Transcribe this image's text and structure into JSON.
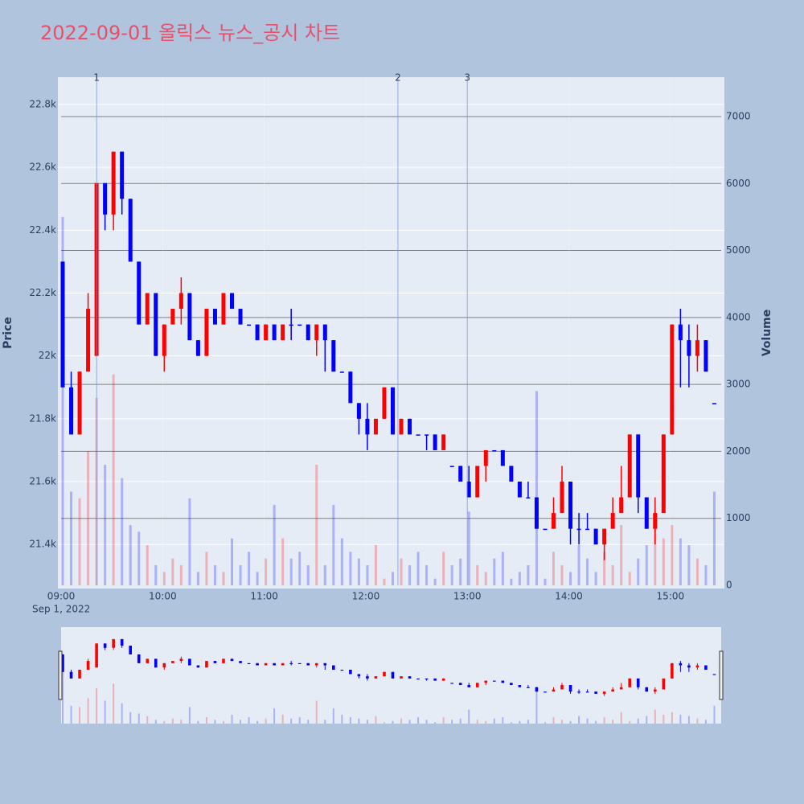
{
  "chart_data": {
    "type": "candlestick",
    "title": "2022-09-01 올릭스 뉴스_공시 차트",
    "y_label": "Price",
    "y2_label": "Volume",
    "x_sublabel": "Sep 1, 2022",
    "increasing_color": "#ff0000",
    "decreasing_color": "#0000ff",
    "x": [
      "09:00",
      "09:05",
      "09:10",
      "09:15",
      "09:20",
      "09:25",
      "09:30",
      "09:35",
      "09:40",
      "09:45",
      "09:50",
      "09:55",
      "10:00",
      "10:05",
      "10:10",
      "10:15",
      "10:20",
      "10:25",
      "10:30",
      "10:35",
      "10:40",
      "10:45",
      "10:50",
      "10:55",
      "11:00",
      "11:05",
      "11:10",
      "11:15",
      "11:20",
      "11:25",
      "11:30",
      "11:35",
      "11:40",
      "11:45",
      "11:50",
      "11:55",
      "12:00",
      "12:05",
      "12:10",
      "12:15",
      "12:20",
      "12:25",
      "12:30",
      "12:35",
      "12:40",
      "12:45",
      "12:50",
      "12:55",
      "13:00",
      "13:05",
      "13:10",
      "13:15",
      "13:20",
      "13:25",
      "13:30",
      "13:35",
      "13:40",
      "13:45",
      "13:50",
      "13:55",
      "14:00",
      "14:05",
      "14:10",
      "14:15",
      "14:20",
      "14:25",
      "14:30",
      "14:35",
      "14:40",
      "14:45",
      "14:50",
      "14:55",
      "15:00",
      "15:05",
      "15:10",
      "15:15",
      "15:20",
      "15:25"
    ],
    "open": [
      22300,
      21900,
      21750,
      21950,
      22000,
      22550,
      22450,
      22650,
      22500,
      22300,
      22100,
      22200,
      22000,
      22100,
      22150,
      22200,
      22050,
      22000,
      22150,
      22100,
      22200,
      22150,
      22100,
      22100,
      22050,
      22100,
      22050,
      22100,
      22100,
      22100,
      22050,
      22100,
      22050,
      21950,
      21950,
      21850,
      21800,
      21750,
      21800,
      21900,
      21750,
      21800,
      21750,
      21750,
      21750,
      21700,
      21650,
      21650,
      21600,
      21550,
      21650,
      21700,
      21700,
      21650,
      21600,
      21550,
      21550,
      21450,
      21450,
      21500,
      21600,
      21450,
      21450,
      21450,
      21400,
      21450,
      21500,
      21550,
      21750,
      21550,
      21450,
      21500,
      21750,
      22100,
      22050,
      22000,
      22050,
      21850
    ],
    "high": [
      22300,
      21950,
      21950,
      22200,
      22550,
      22550,
      22650,
      22650,
      22500,
      22300,
      22200,
      22200,
      22100,
      22150,
      22250,
      22200,
      22050,
      22150,
      22150,
      22200,
      22200,
      22150,
      22100,
      22100,
      22100,
      22100,
      22100,
      22150,
      22100,
      22100,
      22100,
      22100,
      22050,
      21950,
      21950,
      21850,
      21850,
      21800,
      21900,
      21900,
      21800,
      21800,
      21750,
      21750,
      21750,
      21750,
      21650,
      21650,
      21650,
      21650,
      21700,
      21700,
      21700,
      21650,
      21600,
      21600,
      21550,
      21450,
      21550,
      21650,
      21600,
      21500,
      21500,
      21450,
      21450,
      21550,
      21650,
      21750,
      21750,
      21550,
      21550,
      21750,
      22100,
      22150,
      22100,
      22100,
      22050,
      21850
    ],
    "low": [
      21900,
      21750,
      21750,
      21950,
      22000,
      22400,
      22400,
      22450,
      22300,
      22100,
      22100,
      22000,
      21950,
      22100,
      22100,
      22050,
      22000,
      22000,
      22100,
      22100,
      22150,
      22100,
      22100,
      22050,
      22050,
      22050,
      22050,
      22050,
      22100,
      22050,
      22000,
      21950,
      21950,
      21950,
      21850,
      21750,
      21700,
      21750,
      21800,
      21750,
      21750,
      21750,
      21750,
      21700,
      21700,
      21700,
      21650,
      21600,
      21550,
      21550,
      21600,
      21700,
      21650,
      21600,
      21550,
      21550,
      21450,
      21450,
      21450,
      21500,
      21400,
      21400,
      21450,
      21400,
      21350,
      21450,
      21500,
      21550,
      21500,
      21450,
      21400,
      21500,
      21750,
      21900,
      21900,
      21950,
      21950,
      21850
    ],
    "close": [
      21900,
      21750,
      21950,
      22150,
      22550,
      22450,
      22650,
      22500,
      22300,
      22100,
      22200,
      22000,
      22100,
      22150,
      22200,
      22050,
      22000,
      22150,
      22100,
      22200,
      22150,
      22100,
      22100,
      22050,
      22100,
      22050,
      22100,
      22100,
      22100,
      22050,
      22100,
      22050,
      21950,
      21950,
      21850,
      21800,
      21750,
      21800,
      21900,
      21750,
      21800,
      21750,
      21750,
      21750,
      21700,
      21750,
      21650,
      21600,
      21550,
      21650,
      21700,
      21700,
      21650,
      21600,
      21550,
      21550,
      21450,
      21450,
      21500,
      21600,
      21450,
      21450,
      21450,
      21400,
      21450,
      21500,
      21550,
      21750,
      21550,
      21450,
      21500,
      21750,
      22100,
      22050,
      22000,
      22050,
      21950,
      21850
    ],
    "volume": [
      5500,
      1400,
      1300,
      2000,
      2800,
      1800,
      3150,
      1600,
      900,
      800,
      600,
      300,
      200,
      400,
      300,
      1300,
      200,
      500,
      300,
      200,
      700,
      300,
      500,
      200,
      400,
      1200,
      700,
      400,
      500,
      300,
      1800,
      300,
      1200,
      700,
      500,
      400,
      300,
      600,
      100,
      200,
      400,
      300,
      500,
      300,
      100,
      500,
      300,
      400,
      1100,
      300,
      200,
      400,
      500,
      100,
      200,
      300,
      2900,
      100,
      500,
      300,
      200,
      600,
      400,
      200,
      500,
      300,
      900,
      200,
      400,
      600,
      1100,
      700,
      900,
      700,
      600,
      400,
      300,
      1400
    ],
    "events": [
      {
        "x": "09:21",
        "label": "1"
      },
      {
        "x": "12:19",
        "label": "2"
      },
      {
        "x": "13:00",
        "label": "3"
      }
    ],
    "xlim": [
      "09:00",
      "15:30"
    ],
    "xticks": [
      "09:00",
      "10:00",
      "11:00",
      "12:00",
      "13:00",
      "14:00",
      "15:00"
    ],
    "ylim": [
      21270,
      22887
    ],
    "yticks": [
      {
        "value": 21400,
        "label": "21.4k"
      },
      {
        "value": 21600,
        "label": "21.6k"
      },
      {
        "value": 21800,
        "label": "21.8k"
      },
      {
        "value": 22000,
        "label": "22k"
      },
      {
        "value": 22200,
        "label": "22.2k"
      },
      {
        "value": 22400,
        "label": "22.4k"
      },
      {
        "value": 22600,
        "label": "22.6k"
      },
      {
        "value": 22800,
        "label": "22.8k"
      }
    ],
    "y2lim": [
      0,
      7588
    ],
    "y2ticks": [
      0,
      1000,
      2000,
      3000,
      4000,
      5000,
      6000,
      7000
    ],
    "grid": true,
    "rangeslider": true
  }
}
